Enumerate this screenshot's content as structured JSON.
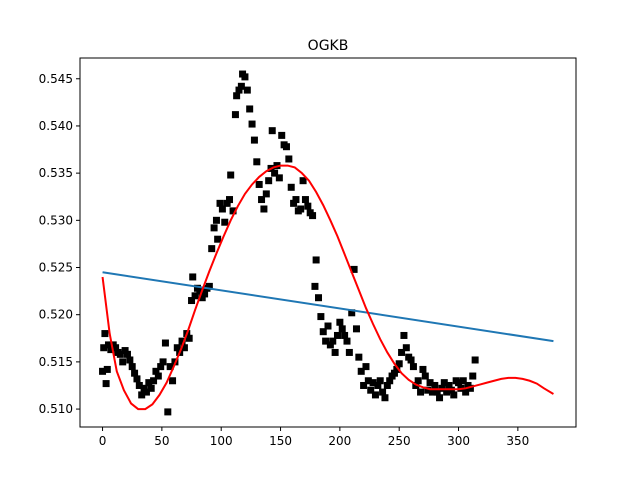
{
  "chart_data": {
    "type": "scatter",
    "title": "OGKB",
    "xlabel": "",
    "ylabel": "",
    "xlim": [
      -19,
      399
    ],
    "ylim": [
      0.5081,
      0.5472
    ],
    "xticks": [
      0,
      50,
      100,
      150,
      200,
      250,
      300,
      350
    ],
    "yticks": [
      0.51,
      0.515,
      0.52,
      0.525,
      0.53,
      0.535,
      0.54,
      0.545
    ],
    "tick_labels": {
      "x": [
        "0",
        "50",
        "100",
        "150",
        "200",
        "250",
        "300",
        "350"
      ],
      "y": [
        "0.510",
        "0.515",
        "0.520",
        "0.525",
        "0.530",
        "0.535",
        "0.540",
        "0.545"
      ]
    },
    "grid": false,
    "series": [
      {
        "kind": "scatter",
        "marker": "square",
        "color": "#000000",
        "points": [
          [
            0,
            0.514
          ],
          [
            1,
            0.5165
          ],
          [
            2,
            0.518
          ],
          [
            3,
            0.5127
          ],
          [
            4,
            0.5142
          ],
          [
            5,
            0.5168
          ],
          [
            7,
            0.5163
          ],
          [
            9,
            0.5168
          ],
          [
            11,
            0.5165
          ],
          [
            13,
            0.516
          ],
          [
            15,
            0.5158
          ],
          [
            17,
            0.515
          ],
          [
            19,
            0.5162
          ],
          [
            21,
            0.5158
          ],
          [
            23,
            0.5152
          ],
          [
            25,
            0.5145
          ],
          [
            27,
            0.5138
          ],
          [
            29,
            0.5132
          ],
          [
            31,
            0.5125
          ],
          [
            33,
            0.5115
          ],
          [
            35,
            0.5122
          ],
          [
            37,
            0.5118
          ],
          [
            39,
            0.5128
          ],
          [
            41,
            0.5122
          ],
          [
            43,
            0.513
          ],
          [
            45,
            0.514
          ],
          [
            47,
            0.5135
          ],
          [
            49,
            0.5145
          ],
          [
            51,
            0.515
          ],
          [
            53,
            0.517
          ],
          [
            55,
            0.5097
          ],
          [
            57,
            0.5145
          ],
          [
            59,
            0.513
          ],
          [
            61,
            0.515
          ],
          [
            63,
            0.5165
          ],
          [
            65,
            0.516
          ],
          [
            67,
            0.5172
          ],
          [
            69,
            0.5165
          ],
          [
            71,
            0.518
          ],
          [
            73,
            0.5175
          ],
          [
            75,
            0.5215
          ],
          [
            76,
            0.524
          ],
          [
            78,
            0.522
          ],
          [
            80,
            0.5228
          ],
          [
            82,
            0.5225
          ],
          [
            84,
            0.5218
          ],
          [
            86,
            0.5222
          ],
          [
            88,
            0.5228
          ],
          [
            90,
            0.523
          ],
          [
            92,
            0.527
          ],
          [
            94,
            0.5292
          ],
          [
            96,
            0.53
          ],
          [
            97,
            0.528
          ],
          [
            99,
            0.5318
          ],
          [
            101,
            0.5312
          ],
          [
            103,
            0.5298
          ],
          [
            105,
            0.5318
          ],
          [
            107,
            0.5322
          ],
          [
            108,
            0.5348
          ],
          [
            110,
            0.531
          ],
          [
            112,
            0.5412
          ],
          [
            113,
            0.5432
          ],
          [
            115,
            0.5438
          ],
          [
            117,
            0.5442
          ],
          [
            118,
            0.5455
          ],
          [
            120,
            0.5452
          ],
          [
            122,
            0.5438
          ],
          [
            124,
            0.5418
          ],
          [
            126,
            0.5402
          ],
          [
            128,
            0.5385
          ],
          [
            130,
            0.5362
          ],
          [
            132,
            0.5338
          ],
          [
            134,
            0.5322
          ],
          [
            136,
            0.5312
          ],
          [
            138,
            0.5328
          ],
          [
            140,
            0.5342
          ],
          [
            142,
            0.5355
          ],
          [
            143,
            0.5395
          ],
          [
            145,
            0.535
          ],
          [
            147,
            0.5358
          ],
          [
            149,
            0.5345
          ],
          [
            151,
            0.539
          ],
          [
            153,
            0.538
          ],
          [
            155,
            0.5378
          ],
          [
            157,
            0.5365
          ],
          [
            159,
            0.5335
          ],
          [
            161,
            0.5318
          ],
          [
            163,
            0.5322
          ],
          [
            165,
            0.531
          ],
          [
            167,
            0.5312
          ],
          [
            169,
            0.5342
          ],
          [
            171,
            0.5322
          ],
          [
            173,
            0.5315
          ],
          [
            175,
            0.5308
          ],
          [
            177,
            0.5305
          ],
          [
            179,
            0.523
          ],
          [
            180,
            0.5258
          ],
          [
            182,
            0.5218
          ],
          [
            184,
            0.5198
          ],
          [
            186,
            0.5182
          ],
          [
            188,
            0.5172
          ],
          [
            190,
            0.5188
          ],
          [
            192,
            0.5168
          ],
          [
            194,
            0.5172
          ],
          [
            196,
            0.516
          ],
          [
            198,
            0.5178
          ],
          [
            200,
            0.5192
          ],
          [
            202,
            0.5185
          ],
          [
            204,
            0.5178
          ],
          [
            206,
            0.5172
          ],
          [
            208,
            0.516
          ],
          [
            210,
            0.5202
          ],
          [
            212,
            0.5248
          ],
          [
            214,
            0.5185
          ],
          [
            216,
            0.5155
          ],
          [
            218,
            0.514
          ],
          [
            220,
            0.5125
          ],
          [
            222,
            0.5145
          ],
          [
            224,
            0.513
          ],
          [
            226,
            0.512
          ],
          [
            228,
            0.5128
          ],
          [
            230,
            0.5115
          ],
          [
            232,
            0.5125
          ],
          [
            234,
            0.513
          ],
          [
            236,
            0.5118
          ],
          [
            238,
            0.5112
          ],
          [
            240,
            0.5125
          ],
          [
            242,
            0.513
          ],
          [
            244,
            0.5135
          ],
          [
            246,
            0.5138
          ],
          [
            248,
            0.5142
          ],
          [
            250,
            0.5148
          ],
          [
            252,
            0.516
          ],
          [
            254,
            0.5178
          ],
          [
            256,
            0.5165
          ],
          [
            258,
            0.5155
          ],
          [
            260,
            0.5152
          ],
          [
            262,
            0.5145
          ],
          [
            264,
            0.5125
          ],
          [
            266,
            0.513
          ],
          [
            268,
            0.5118
          ],
          [
            270,
            0.5142
          ],
          [
            272,
            0.5135
          ],
          [
            274,
            0.512
          ],
          [
            276,
            0.5128
          ],
          [
            278,
            0.5118
          ],
          [
            280,
            0.5125
          ],
          [
            282,
            0.5118
          ],
          [
            284,
            0.5112
          ],
          [
            286,
            0.5122
          ],
          [
            288,
            0.5128
          ],
          [
            290,
            0.5118
          ],
          [
            292,
            0.5125
          ],
          [
            294,
            0.512
          ],
          [
            296,
            0.5115
          ],
          [
            298,
            0.513
          ],
          [
            300,
            0.5128
          ],
          [
            302,
            0.5122
          ],
          [
            304,
            0.513
          ],
          [
            306,
            0.5118
          ],
          [
            308,
            0.5125
          ],
          [
            310,
            0.5122
          ],
          [
            312,
            0.5135
          ],
          [
            314,
            0.5152
          ]
        ]
      },
      {
        "kind": "line",
        "color": "#1f77b4",
        "points": [
          [
            0,
            0.5245
          ],
          [
            380,
            0.5172
          ]
        ]
      },
      {
        "kind": "line",
        "color": "#ff0000",
        "points": [
          [
            0,
            0.524
          ],
          [
            6,
            0.518
          ],
          [
            12,
            0.514
          ],
          [
            18,
            0.512
          ],
          [
            24,
            0.5106
          ],
          [
            30,
            0.51
          ],
          [
            36,
            0.51
          ],
          [
            42,
            0.5105
          ],
          [
            48,
            0.5115
          ],
          [
            54,
            0.5128
          ],
          [
            60,
            0.5145
          ],
          [
            66,
            0.5163
          ],
          [
            72,
            0.5183
          ],
          [
            78,
            0.5205
          ],
          [
            84,
            0.5226
          ],
          [
            90,
            0.5246
          ],
          [
            96,
            0.5265
          ],
          [
            102,
            0.5283
          ],
          [
            108,
            0.53
          ],
          [
            114,
            0.5315
          ],
          [
            120,
            0.5328
          ],
          [
            126,
            0.5338
          ],
          [
            132,
            0.5346
          ],
          [
            138,
            0.5352
          ],
          [
            144,
            0.5356
          ],
          [
            150,
            0.5358
          ],
          [
            156,
            0.5358
          ],
          [
            162,
            0.5356
          ],
          [
            168,
            0.535
          ],
          [
            174,
            0.5342
          ],
          [
            180,
            0.533
          ],
          [
            186,
            0.5316
          ],
          [
            192,
            0.53
          ],
          [
            198,
            0.5283
          ],
          [
            204,
            0.5264
          ],
          [
            210,
            0.5245
          ],
          [
            216,
            0.5226
          ],
          [
            222,
            0.5207
          ],
          [
            228,
            0.519
          ],
          [
            234,
            0.5174
          ],
          [
            240,
            0.516
          ],
          [
            246,
            0.5148
          ],
          [
            252,
            0.5138
          ],
          [
            258,
            0.5131
          ],
          [
            264,
            0.5126
          ],
          [
            270,
            0.5123
          ],
          [
            276,
            0.5121
          ],
          [
            282,
            0.5121
          ],
          [
            288,
            0.5121
          ],
          [
            294,
            0.5121
          ],
          [
            300,
            0.5121
          ],
          [
            306,
            0.5122
          ],
          [
            312,
            0.5124
          ],
          [
            318,
            0.5126
          ],
          [
            324,
            0.5128
          ],
          [
            330,
            0.513
          ],
          [
            336,
            0.5132
          ],
          [
            342,
            0.5133
          ],
          [
            348,
            0.5133
          ],
          [
            354,
            0.5132
          ],
          [
            360,
            0.513
          ],
          [
            366,
            0.5127
          ],
          [
            372,
            0.5122
          ],
          [
            380,
            0.5116
          ]
        ]
      }
    ]
  }
}
